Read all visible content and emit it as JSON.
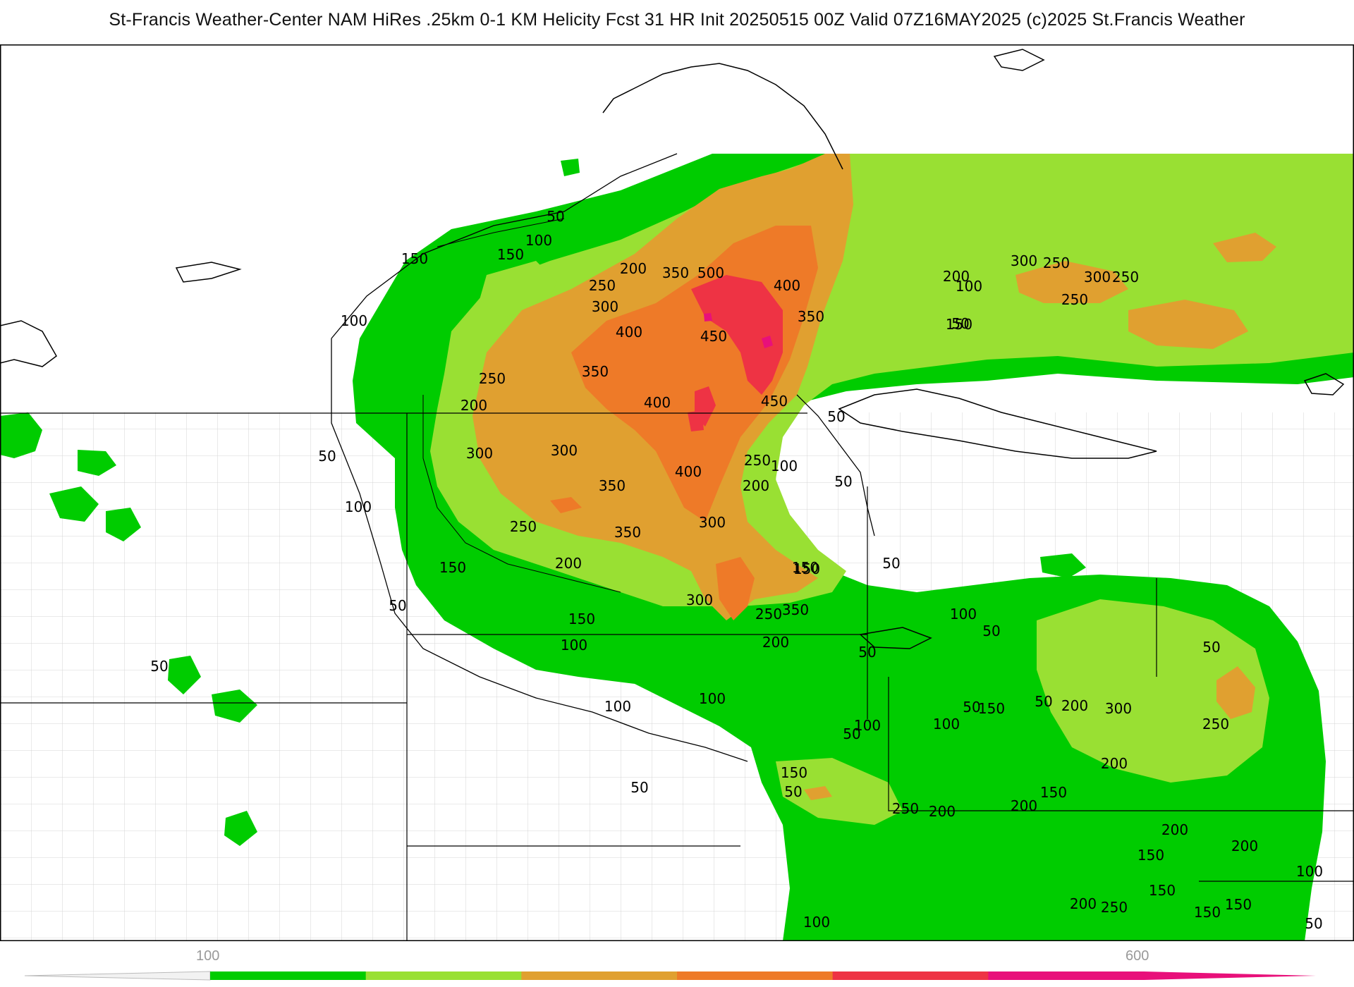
{
  "header": {
    "title": "St-Francis Weather-Center NAM HiRes .25km 0-1 KM Helicity Fcst 31 HR Init 20250515 00Z  Valid 07Z16MAY2025    (c)2025 St.Francis Weather"
  },
  "legend": {
    "tick_labels": [
      "100",
      "600"
    ],
    "bins": [
      {
        "color": "#00cc00"
      },
      {
        "color": "#99e033"
      },
      {
        "color": "#e0a030"
      },
      {
        "color": "#ee7a28"
      },
      {
        "color": "#ee3344"
      },
      {
        "color": "#e8107a"
      }
    ]
  },
  "map": {
    "contour_labels": [
      {
        "text": "50"
      },
      {
        "text": "100"
      },
      {
        "text": "150"
      },
      {
        "text": "200"
      },
      {
        "text": "350"
      },
      {
        "text": "500"
      },
      {
        "text": "400"
      },
      {
        "text": "250"
      },
      {
        "text": "300"
      },
      {
        "text": "400"
      },
      {
        "text": "450"
      },
      {
        "text": "350"
      },
      {
        "text": "100"
      },
      {
        "text": "150"
      },
      {
        "text": "250"
      },
      {
        "text": "350"
      },
      {
        "text": "200"
      },
      {
        "text": "400"
      },
      {
        "text": "450"
      },
      {
        "text": "50"
      },
      {
        "text": "300"
      },
      {
        "text": "100"
      },
      {
        "text": "50"
      },
      {
        "text": "300"
      },
      {
        "text": "250"
      },
      {
        "text": "350"
      },
      {
        "text": "400"
      },
      {
        "text": "200"
      },
      {
        "text": "50"
      },
      {
        "text": "100"
      },
      {
        "text": "250"
      },
      {
        "text": "350"
      },
      {
        "text": "300"
      },
      {
        "text": "50"
      },
      {
        "text": "150"
      },
      {
        "text": "200"
      },
      {
        "text": "150"
      },
      {
        "text": "50"
      },
      {
        "text": "100"
      },
      {
        "text": "50"
      },
      {
        "text": "150"
      },
      {
        "text": "300"
      },
      {
        "text": "250"
      },
      {
        "text": "350"
      },
      {
        "text": "100"
      },
      {
        "text": "200"
      },
      {
        "text": "50"
      },
      {
        "text": "150"
      },
      {
        "text": "100"
      },
      {
        "text": "50"
      },
      {
        "text": "100"
      },
      {
        "text": "50"
      },
      {
        "text": "150"
      },
      {
        "text": "100"
      },
      {
        "text": "200"
      },
      {
        "text": "250"
      },
      {
        "text": "250"
      },
      {
        "text": "300"
      },
      {
        "text": "250"
      },
      {
        "text": "300"
      },
      {
        "text": "200"
      },
      {
        "text": "150"
      },
      {
        "text": "100"
      },
      {
        "text": "50"
      },
      {
        "text": "250"
      },
      {
        "text": "300"
      },
      {
        "text": "200"
      },
      {
        "text": "50"
      },
      {
        "text": "100"
      },
      {
        "text": "150"
      },
      {
        "text": "250"
      },
      {
        "text": "200"
      },
      {
        "text": "150"
      },
      {
        "text": "200"
      },
      {
        "text": "200"
      },
      {
        "text": "150"
      },
      {
        "text": "250"
      },
      {
        "text": "200"
      },
      {
        "text": "150"
      },
      {
        "text": "200"
      },
      {
        "text": "100"
      },
      {
        "text": "150"
      },
      {
        "text": "150"
      },
      {
        "text": "100"
      },
      {
        "text": "50"
      },
      {
        "text": "50"
      },
      {
        "text": "50"
      },
      {
        "text": "50"
      },
      {
        "text": "50"
      }
    ]
  }
}
